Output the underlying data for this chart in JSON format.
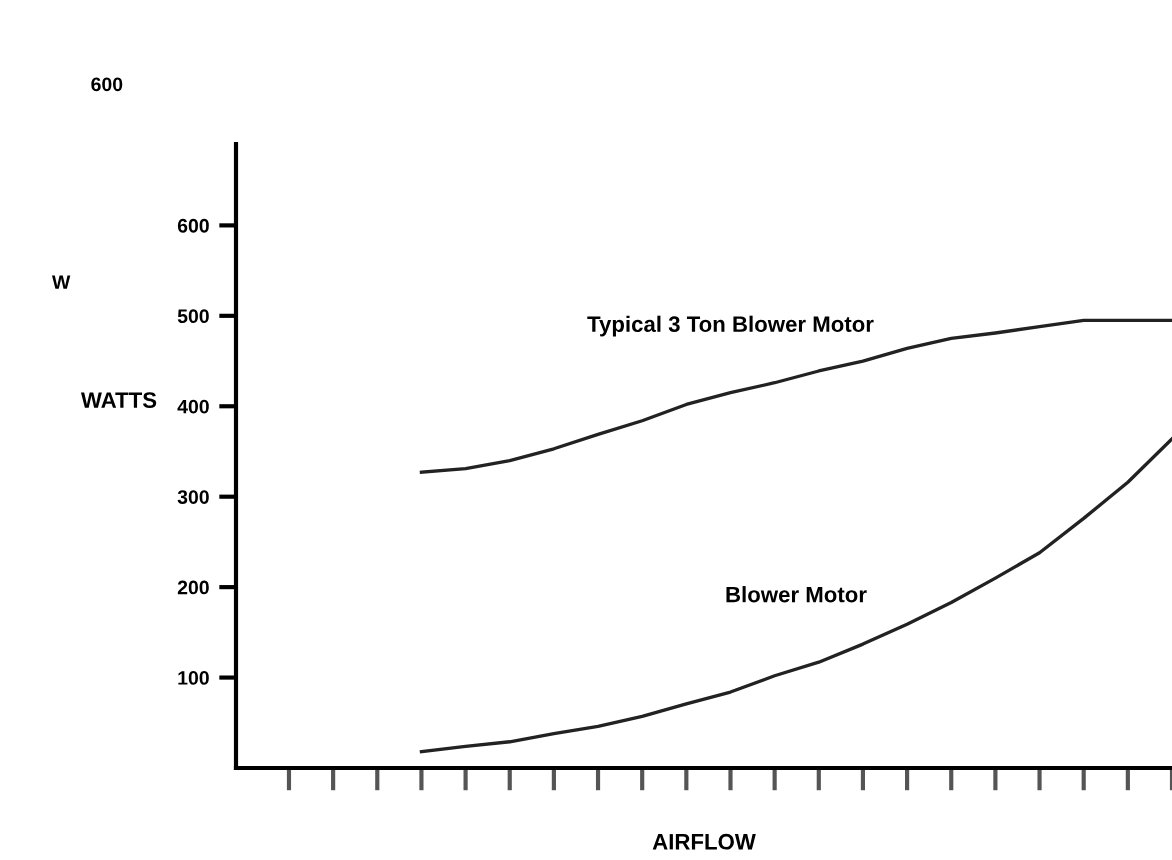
{
  "chart_data": {
    "type": "line",
    "ylabel": "WATTS",
    "xlabel": "AIRFLOW",
    "categories": [
      null,
      null,
      null,
      null,
      null,
      null,
      null,
      null,
      null,
      null,
      null,
      null,
      null,
      null,
      null,
      null,
      null,
      null,
      null,
      null,
      null
    ],
    "series": [
      {
        "name": "Typical 3 Ton Blower Motor",
        "color": "#222222",
        "values": [
          null,
          null,
          null,
          327,
          331,
          340,
          353,
          369,
          384,
          402,
          415,
          426,
          439,
          450,
          464,
          475,
          481,
          488,
          495,
          495,
          495
        ]
      },
      {
        "name": "Blower Motor",
        "color": "#222222",
        "values": [
          null,
          null,
          null,
          18,
          24,
          29,
          38,
          46,
          57,
          71,
          84,
          102,
          117,
          137,
          159,
          183,
          210,
          238,
          276,
          316,
          364
        ]
      }
    ],
    "ylim": [
      0,
      690
    ],
    "yticks": [
      100,
      200,
      300,
      400,
      500,
      600
    ],
    "annotations": [
      "600",
      "W"
    ],
    "grid": false,
    "legend": false,
    "marker": "none",
    "line_style": "solid"
  }
}
